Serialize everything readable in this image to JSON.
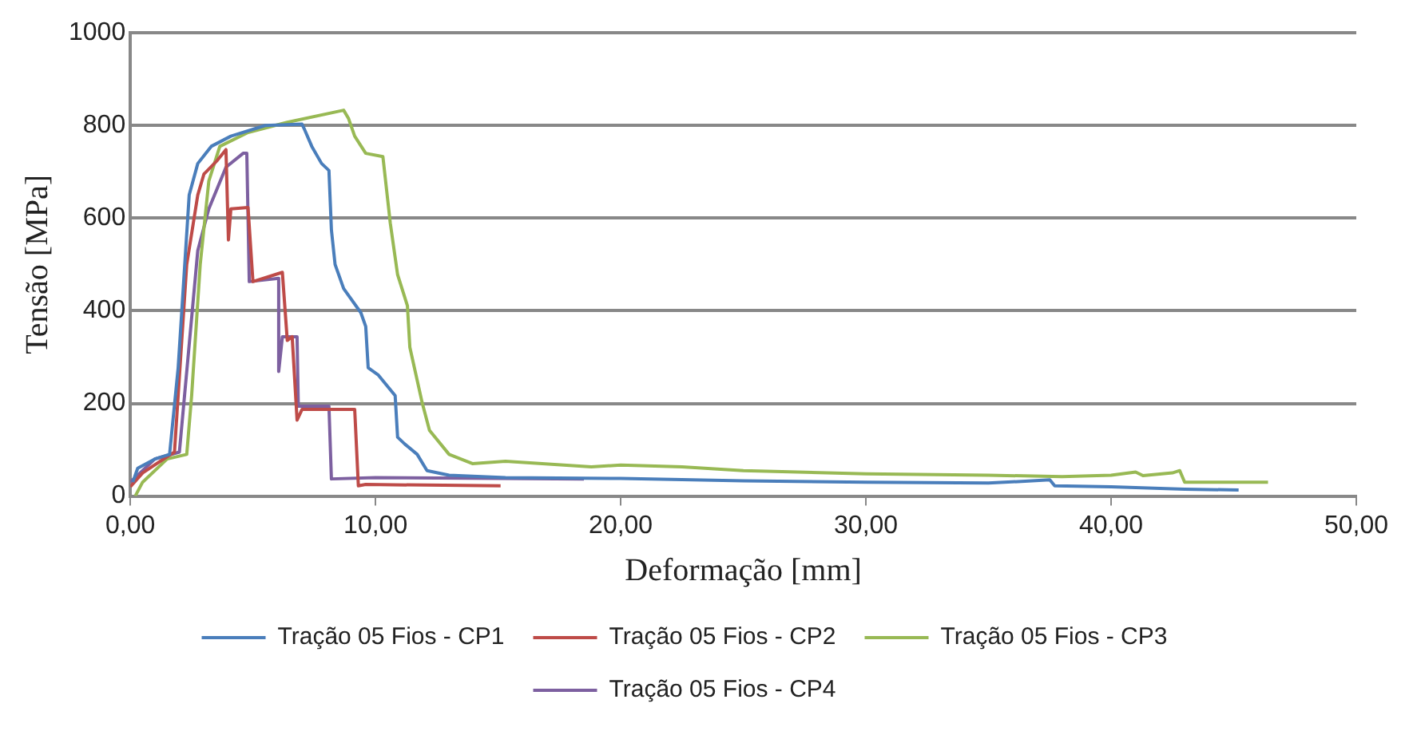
{
  "chart_data": {
    "type": "line",
    "xlabel": "Deformação [mm]",
    "ylabel": "Tensão [MPa]",
    "xlim": [
      0,
      50
    ],
    "xticks": [
      {
        "value": 0,
        "label": "0,00"
      },
      {
        "value": 10,
        "label": "10,00"
      },
      {
        "value": 20,
        "label": "20,00"
      },
      {
        "value": 30,
        "label": "30,00"
      },
      {
        "value": 40,
        "label": "40,00"
      },
      {
        "value": 50,
        "label": "50,00"
      }
    ],
    "ylim": [
      0,
      1000
    ],
    "yticks": [
      0,
      200,
      400,
      600,
      800,
      1000
    ],
    "grid": "y",
    "legend": "bottom",
    "marker": "none",
    "line_style": "solid",
    "series": [
      {
        "name": "Tração 05 Fios - CP1",
        "color": "#4a7ebb",
        "x": [
          0.1,
          0.3,
          1.0,
          1.6,
          1.95,
          2.4,
          2.75,
          3.3,
          4.1,
          5.5,
          7.0,
          7.1,
          7.4,
          7.8,
          8.1,
          8.2,
          8.35,
          8.7,
          9.4,
          9.6,
          9.7,
          10.1,
          10.8,
          10.9,
          11.2,
          11.7,
          12.1,
          13.0,
          15.3,
          20,
          25,
          30,
          35,
          37.5,
          37.7,
          40,
          43,
          45.2
        ],
        "values": [
          30,
          60,
          80,
          90,
          277,
          650,
          718,
          755,
          777,
          800,
          803,
          792,
          755,
          718,
          703,
          575,
          500,
          448,
          396,
          366,
          277,
          262,
          217,
          127,
          112,
          90,
          55,
          45,
          40,
          38,
          33,
          30,
          28,
          35,
          22,
          20,
          15,
          13
        ]
      },
      {
        "name": "Tração 05 Fios - CP2",
        "color": "#be4b48",
        "x": [
          0,
          0.5,
          1.5,
          1.8,
          1.95,
          2.3,
          2.75,
          3.0,
          3.55,
          3.9,
          4.0,
          4.1,
          4.8,
          5.0,
          6.2,
          6.4,
          6.6,
          6.8,
          7.0,
          9.15,
          9.3,
          9.6,
          15.1
        ],
        "values": [
          20,
          50,
          85,
          95,
          217,
          500,
          650,
          695,
          725,
          748,
          553,
          620,
          623,
          463,
          483,
          336,
          344,
          164,
          187,
          187,
          22,
          25,
          22
        ]
      },
      {
        "name": "Tração 05 Fios - CP3",
        "color": "#98b954",
        "x": [
          0.2,
          0.5,
          1.5,
          2.3,
          2.5,
          2.85,
          3.2,
          3.65,
          4.8,
          6.4,
          8.7,
          8.9,
          9.15,
          9.6,
          10.3,
          10.6,
          10.9,
          11.3,
          11.4,
          11.9,
          12.2,
          13.0,
          13.95,
          15.3,
          18.8,
          20,
          22.5,
          25,
          30,
          35,
          38,
          40,
          41,
          41.3,
          42.5,
          42.8,
          43,
          46.4
        ],
        "values": [
          0,
          30,
          80,
          90,
          217,
          500,
          680,
          755,
          785,
          807,
          833,
          815,
          777,
          740,
          733,
          590,
          478,
          411,
          321,
          202,
          142,
          90,
          70,
          75,
          63,
          67,
          63,
          55,
          48,
          45,
          42,
          45,
          52,
          44,
          50,
          55,
          30,
          30
        ]
      },
      {
        "name": "Tração 05 Fios - CP4",
        "color": "#7d60a0",
        "x": [
          0,
          1.0,
          2.0,
          2.75,
          3.2,
          3.9,
          4.6,
          4.75,
          4.85,
          6.05,
          6.05,
          6.2,
          6.8,
          6.85,
          8.1,
          8.2,
          10,
          15,
          18.5
        ],
        "values": [
          30,
          80,
          95,
          530,
          620,
          710,
          740,
          740,
          463,
          470,
          269,
          344,
          344,
          194,
          194,
          37,
          40,
          38,
          37
        ]
      }
    ]
  }
}
